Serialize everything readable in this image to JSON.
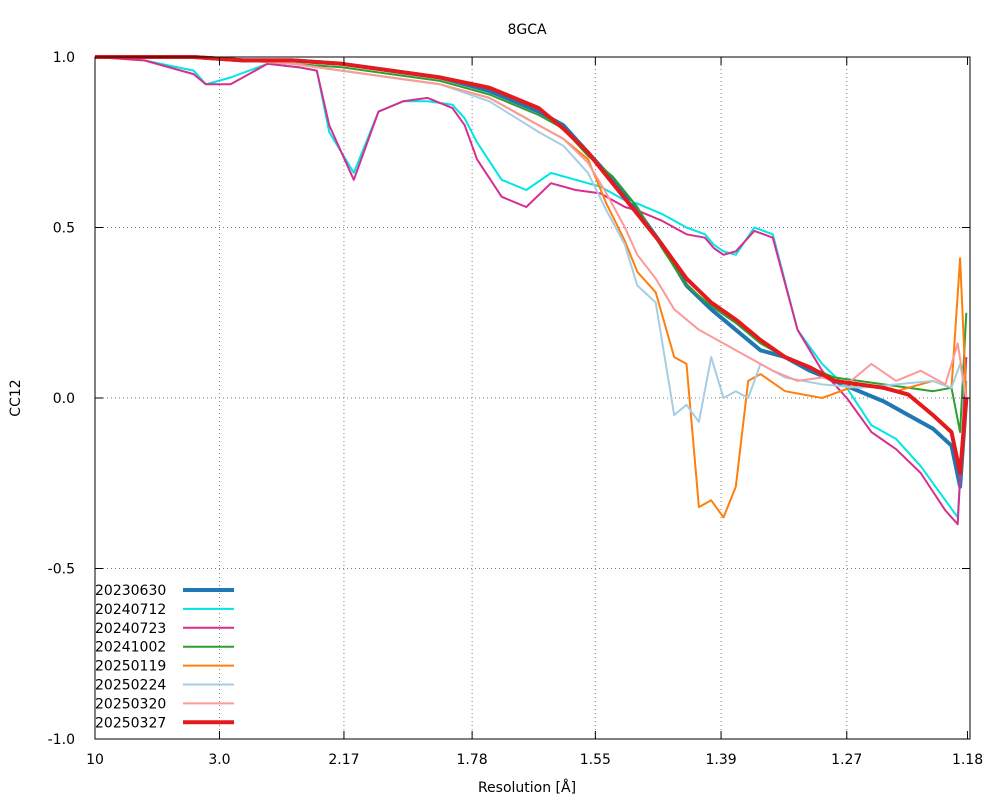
{
  "chart_data": {
    "type": "line",
    "title": "8GCA",
    "xlabel": "Resolution [Å]",
    "ylabel": "CC12",
    "xlim": [
      0.01,
      0.72
    ],
    "ylim": [
      -1.0,
      1.0
    ],
    "x_scale": "1/d^2",
    "grid": true,
    "legend_position": "bottom-left",
    "x_ticks": [
      {
        "label": "10",
        "value": 0.01
      },
      {
        "label": "3.0",
        "value": 0.111
      },
      {
        "label": "2.17",
        "value": 0.212
      },
      {
        "label": "1.78",
        "value": 0.316
      },
      {
        "label": "1.55",
        "value": 0.416
      },
      {
        "label": "1.39",
        "value": 0.518
      },
      {
        "label": "1.27",
        "value": 0.62
      },
      {
        "label": "1.18",
        "value": 0.718
      }
    ],
    "y_ticks": [
      {
        "label": "1.0",
        "value": 1.0
      },
      {
        "label": "0.5",
        "value": 0.5
      },
      {
        "label": "0.0",
        "value": 0.0
      },
      {
        "label": "-0.5",
        "value": -0.5
      },
      {
        "label": "-1.0",
        "value": -1.0
      }
    ],
    "series": [
      {
        "name": "20230630",
        "color": "#1f77b4",
        "width": 4,
        "x": [
          0.01,
          0.05,
          0.09,
          0.13,
          0.17,
          0.21,
          0.25,
          0.29,
          0.33,
          0.37,
          0.39,
          0.41,
          0.43,
          0.45,
          0.47,
          0.49,
          0.51,
          0.53,
          0.55,
          0.57,
          0.59,
          0.61,
          0.63,
          0.65,
          0.67,
          0.69,
          0.705,
          0.712,
          0.717
        ],
        "y": [
          1.0,
          1.0,
          1.0,
          0.99,
          0.99,
          0.98,
          0.96,
          0.94,
          0.9,
          0.84,
          0.8,
          0.72,
          0.64,
          0.55,
          0.45,
          0.33,
          0.26,
          0.2,
          0.14,
          0.12,
          0.08,
          0.05,
          0.02,
          -0.01,
          -0.05,
          -0.09,
          -0.14,
          -0.26,
          0.0
        ]
      },
      {
        "name": "20240712",
        "color": "#00e5e5",
        "width": 2,
        "x": [
          0.01,
          0.05,
          0.09,
          0.1,
          0.12,
          0.15,
          0.175,
          0.19,
          0.2,
          0.22,
          0.24,
          0.26,
          0.28,
          0.3,
          0.31,
          0.32,
          0.34,
          0.36,
          0.38,
          0.4,
          0.42,
          0.44,
          0.45,
          0.47,
          0.49,
          0.505,
          0.512,
          0.52,
          0.53,
          0.545,
          0.56,
          0.58,
          0.6,
          0.62,
          0.64,
          0.66,
          0.68,
          0.7,
          0.71,
          0.717
        ],
        "y": [
          1.0,
          0.99,
          0.96,
          0.92,
          0.94,
          0.98,
          0.97,
          0.96,
          0.78,
          0.66,
          0.84,
          0.87,
          0.87,
          0.86,
          0.82,
          0.75,
          0.64,
          0.61,
          0.66,
          0.64,
          0.62,
          0.58,
          0.57,
          0.54,
          0.5,
          0.48,
          0.45,
          0.43,
          0.42,
          0.5,
          0.48,
          0.2,
          0.1,
          0.03,
          -0.08,
          -0.12,
          -0.2,
          -0.3,
          -0.35,
          0.05
        ]
      },
      {
        "name": "20240723",
        "color": "#d62f8e",
        "width": 2,
        "x": [
          0.01,
          0.05,
          0.09,
          0.1,
          0.12,
          0.15,
          0.175,
          0.19,
          0.2,
          0.22,
          0.24,
          0.26,
          0.28,
          0.3,
          0.31,
          0.32,
          0.34,
          0.36,
          0.38,
          0.4,
          0.42,
          0.44,
          0.45,
          0.47,
          0.49,
          0.505,
          0.512,
          0.52,
          0.53,
          0.545,
          0.56,
          0.58,
          0.6,
          0.62,
          0.64,
          0.66,
          0.68,
          0.7,
          0.71,
          0.717
        ],
        "y": [
          1.0,
          0.99,
          0.95,
          0.92,
          0.92,
          0.98,
          0.97,
          0.96,
          0.8,
          0.64,
          0.84,
          0.87,
          0.88,
          0.85,
          0.8,
          0.7,
          0.59,
          0.56,
          0.63,
          0.61,
          0.6,
          0.56,
          0.55,
          0.52,
          0.48,
          0.47,
          0.44,
          0.42,
          0.43,
          0.49,
          0.47,
          0.2,
          0.08,
          0.0,
          -0.1,
          -0.15,
          -0.22,
          -0.33,
          -0.37,
          0.12
        ]
      },
      {
        "name": "20241002",
        "color": "#2ca02c",
        "width": 2,
        "x": [
          0.01,
          0.05,
          0.09,
          0.13,
          0.17,
          0.21,
          0.25,
          0.29,
          0.33,
          0.37,
          0.39,
          0.41,
          0.43,
          0.45,
          0.47,
          0.49,
          0.51,
          0.53,
          0.55,
          0.57,
          0.59,
          0.61,
          0.63,
          0.65,
          0.67,
          0.69,
          0.705,
          0.712,
          0.717
        ],
        "y": [
          1.0,
          1.0,
          1.0,
          0.99,
          0.98,
          0.97,
          0.95,
          0.93,
          0.89,
          0.83,
          0.79,
          0.71,
          0.65,
          0.56,
          0.44,
          0.33,
          0.27,
          0.22,
          0.16,
          0.12,
          0.09,
          0.06,
          0.05,
          0.04,
          0.03,
          0.02,
          0.03,
          -0.1,
          0.25
        ]
      },
      {
        "name": "20250119",
        "color": "#ff7f0e",
        "width": 2,
        "x": [
          0.01,
          0.05,
          0.09,
          0.13,
          0.17,
          0.21,
          0.25,
          0.29,
          0.33,
          0.37,
          0.39,
          0.41,
          0.425,
          0.44,
          0.45,
          0.465,
          0.48,
          0.49,
          0.5,
          0.51,
          0.52,
          0.53,
          0.54,
          0.55,
          0.57,
          0.6,
          0.63,
          0.66,
          0.69,
          0.705,
          0.712,
          0.717
        ],
        "y": [
          1.0,
          1.0,
          1.0,
          0.99,
          0.98,
          0.96,
          0.94,
          0.92,
          0.88,
          0.8,
          0.76,
          0.7,
          0.57,
          0.46,
          0.37,
          0.31,
          0.12,
          0.1,
          -0.32,
          -0.3,
          -0.35,
          -0.26,
          0.05,
          0.07,
          0.02,
          0.0,
          0.04,
          0.02,
          0.05,
          0.03,
          0.41,
          0.0
        ]
      },
      {
        "name": "20250224",
        "color": "#a6cee3",
        "width": 2,
        "x": [
          0.01,
          0.05,
          0.09,
          0.13,
          0.17,
          0.21,
          0.25,
          0.29,
          0.33,
          0.37,
          0.39,
          0.41,
          0.425,
          0.44,
          0.45,
          0.465,
          0.48,
          0.49,
          0.5,
          0.51,
          0.52,
          0.53,
          0.54,
          0.55,
          0.57,
          0.6,
          0.63,
          0.66,
          0.69,
          0.705,
          0.712,
          0.717
        ],
        "y": [
          1.0,
          1.0,
          1.0,
          0.99,
          0.98,
          0.96,
          0.94,
          0.92,
          0.87,
          0.78,
          0.74,
          0.66,
          0.55,
          0.45,
          0.33,
          0.28,
          -0.05,
          -0.02,
          -0.07,
          0.12,
          0.0,
          0.02,
          0.0,
          0.1,
          0.06,
          0.04,
          0.03,
          0.04,
          0.05,
          0.03,
          0.1,
          0.0
        ]
      },
      {
        "name": "20250320",
        "color": "#fb9a99",
        "width": 2,
        "x": [
          0.01,
          0.05,
          0.09,
          0.13,
          0.17,
          0.21,
          0.25,
          0.29,
          0.33,
          0.37,
          0.39,
          0.41,
          0.425,
          0.44,
          0.45,
          0.465,
          0.48,
          0.5,
          0.52,
          0.54,
          0.56,
          0.58,
          0.6,
          0.62,
          0.64,
          0.66,
          0.68,
          0.7,
          0.71,
          0.717
        ],
        "y": [
          1.0,
          1.0,
          1.0,
          0.99,
          0.98,
          0.96,
          0.94,
          0.92,
          0.88,
          0.8,
          0.76,
          0.69,
          0.6,
          0.5,
          0.42,
          0.35,
          0.26,
          0.2,
          0.16,
          0.12,
          0.08,
          0.05,
          0.06,
          0.04,
          0.1,
          0.05,
          0.08,
          0.04,
          0.16,
          0.0
        ]
      },
      {
        "name": "20250327",
        "color": "#e41a1c",
        "width": 4,
        "x": [
          0.01,
          0.05,
          0.09,
          0.13,
          0.17,
          0.21,
          0.25,
          0.29,
          0.33,
          0.35,
          0.37,
          0.39,
          0.41,
          0.43,
          0.45,
          0.47,
          0.49,
          0.51,
          0.53,
          0.55,
          0.57,
          0.59,
          0.61,
          0.63,
          0.65,
          0.67,
          0.69,
          0.705,
          0.712,
          0.717
        ],
        "y": [
          1.0,
          1.0,
          1.0,
          0.99,
          0.99,
          0.98,
          0.96,
          0.94,
          0.91,
          0.88,
          0.85,
          0.79,
          0.72,
          0.63,
          0.54,
          0.45,
          0.35,
          0.28,
          0.23,
          0.17,
          0.12,
          0.09,
          0.05,
          0.04,
          0.03,
          0.01,
          -0.05,
          -0.1,
          -0.22,
          0.0
        ]
      }
    ]
  }
}
